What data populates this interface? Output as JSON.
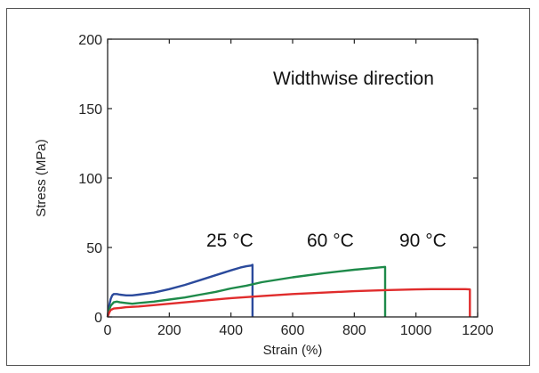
{
  "chart_data": {
    "type": "line",
    "title": "",
    "xlabel": "Strain (%)",
    "ylabel": "Stress (MPa)",
    "xlim": [
      0,
      1200
    ],
    "ylim": [
      0,
      200
    ],
    "xticks": [
      0,
      200,
      400,
      600,
      800,
      1000,
      1200
    ],
    "yticks": [
      0,
      50,
      100,
      150,
      200
    ],
    "grid": false,
    "annotations": {
      "direction": "Widthwise direction",
      "label_25": "25 °C",
      "label_60": "60 °C",
      "label_90": "90 °C"
    },
    "series": [
      {
        "color": "#2b4a9c",
        "x": [
          0,
          5,
          10,
          15,
          20,
          30,
          40,
          60,
          80,
          100,
          150,
          200,
          250,
          300,
          350,
          400,
          430,
          450,
          465,
          470,
          470
        ],
        "y": [
          0,
          8,
          13,
          15.5,
          16.5,
          16.5,
          16,
          15.5,
          15.5,
          16,
          17.5,
          20,
          23,
          26.5,
          30,
          33.5,
          35.5,
          36.5,
          37,
          37.5,
          0
        ]
      },
      {
        "color": "#1e8a4a",
        "x": [
          0,
          5,
          10,
          20,
          30,
          40,
          60,
          80,
          100,
          150,
          200,
          250,
          300,
          350,
          400,
          450,
          500,
          600,
          700,
          800,
          850,
          900,
          900
        ],
        "y": [
          0,
          5,
          8,
          10.5,
          11,
          10.5,
          10,
          9.5,
          10,
          11,
          12.5,
          14,
          16,
          18,
          20.5,
          22.5,
          25,
          28.5,
          31.5,
          34,
          35,
          36,
          0
        ]
      },
      {
        "color": "#e02c2c",
        "x": [
          0,
          5,
          10,
          20,
          40,
          60,
          100,
          200,
          300,
          400,
          500,
          600,
          700,
          800,
          900,
          1000,
          1050,
          1100,
          1160,
          1175,
          1175
        ],
        "y": [
          0,
          3,
          5,
          6,
          6.5,
          7,
          7.5,
          9.5,
          11.5,
          13.5,
          15,
          16.5,
          17.5,
          18.5,
          19.3,
          19.8,
          20,
          20,
          20,
          19.8,
          0
        ]
      }
    ]
  }
}
